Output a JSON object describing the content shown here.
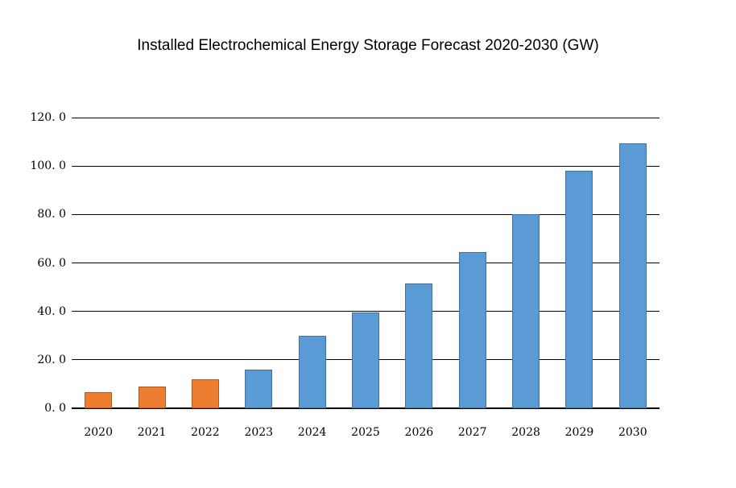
{
  "chart_data": {
    "type": "bar",
    "title": "Installed Electrochemical Energy Storage Forecast 2020-2030 (GW)",
    "categories": [
      "2020",
      "2021",
      "2022",
      "2023",
      "2024",
      "2025",
      "2026",
      "2027",
      "2028",
      "2029",
      "2030"
    ],
    "values": [
      6.5,
      9,
      12,
      16,
      30,
      39.5,
      51.5,
      64.5,
      80,
      98,
      109.5
    ],
    "bar_colors": [
      "orange",
      "orange",
      "orange",
      "blue",
      "blue",
      "blue",
      "blue",
      "blue",
      "blue",
      "blue",
      "blue"
    ],
    "xlabel": "",
    "ylabel": "",
    "ylim": [
      0,
      120
    ],
    "y_tick_step": 20,
    "y_ticks": [
      {
        "value": 0,
        "label": "0. 0"
      },
      {
        "value": 20,
        "label": "20. 0"
      },
      {
        "value": 40,
        "label": "40. 0"
      },
      {
        "value": 60,
        "label": "60. 0"
      },
      {
        "value": 80,
        "label": "80. 0"
      },
      {
        "value": 100,
        "label": "100. 0"
      },
      {
        "value": 120,
        "label": "120. 0"
      }
    ],
    "grid": true,
    "legend_position": "none"
  },
  "colors": {
    "background": "#FFFFFF",
    "text": "#000000",
    "grid_line": "#000000",
    "orange_fill": "#ED7D31",
    "orange_border": "#AE5A21",
    "blue_fill": "#5B9BD5",
    "blue_border": "#41719C"
  }
}
